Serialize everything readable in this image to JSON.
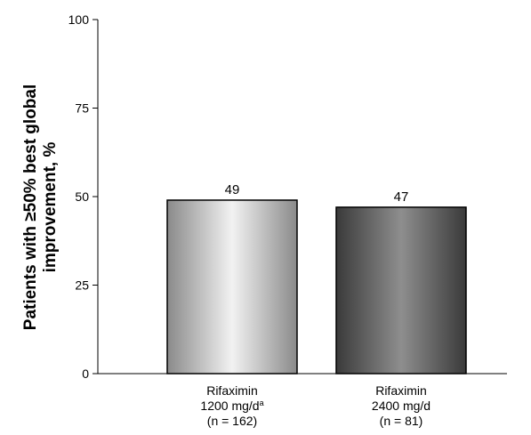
{
  "chart_data": {
    "type": "bar",
    "categories": [
      {
        "lines": [
          "Rifaximin",
          "1200 mg/d",
          "(n = 162)"
        ],
        "superscript": "a"
      },
      {
        "lines": [
          "Rifaximin",
          "2400 mg/d",
          "(n = 81)"
        ],
        "superscript": ""
      }
    ],
    "values": [
      49,
      47
    ],
    "data_labels": [
      "49",
      "47"
    ],
    "ylabel_lines": [
      "Patients with ≥50% best global",
      "improvement, %"
    ],
    "ylim": [
      0,
      100
    ],
    "yticks": [
      0,
      25,
      50,
      75,
      100
    ],
    "grid": false,
    "legend": "none",
    "bar_styles": [
      {
        "edge": "#8a8a8a",
        "center": "#f2f2f2"
      },
      {
        "edge": "#3a3a3a",
        "center": "#8e8e8e"
      }
    ]
  }
}
